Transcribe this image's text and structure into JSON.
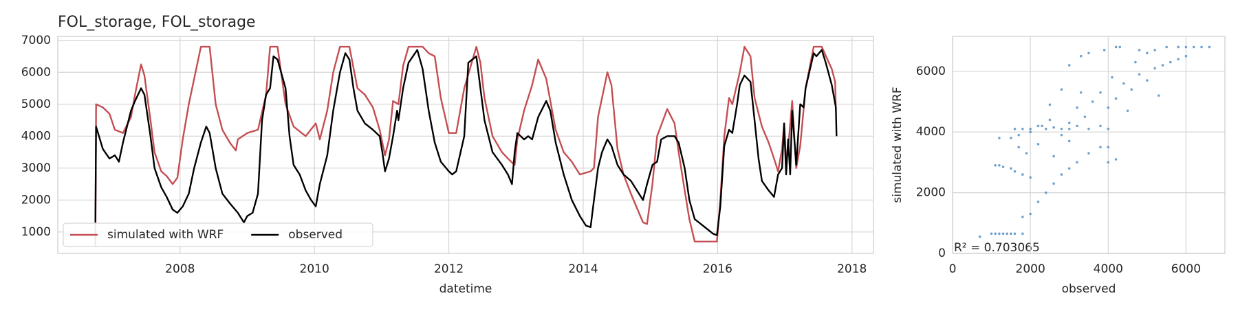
{
  "chart_data": [
    {
      "type": "line",
      "title": "FOL_storage, FOL_storage",
      "x_label": "datetime",
      "xlim": [
        2006.18,
        2018.32
      ],
      "xticks": [
        2008,
        2010,
        2012,
        2014,
        2016,
        2018
      ],
      "ylim": [
        330,
        7124
      ],
      "yticks": [
        1000,
        2000,
        3000,
        4000,
        5000,
        6000,
        7000
      ],
      "grid": true,
      "legend": "lower left",
      "series": [
        {
          "name": "simulated with WRF",
          "color": "#c44e52",
          "x": [
            2006.74,
            2006.75,
            2006.85,
            2006.95,
            2007.03,
            2007.09,
            2007.15,
            2007.27,
            2007.33,
            2007.42,
            2007.47,
            2007.56,
            2007.62,
            2007.72,
            2007.8,
            2007.89,
            2007.96,
            2008.04,
            2008.13,
            2008.21,
            2008.31,
            2008.44,
            2008.53,
            2008.63,
            2008.74,
            2008.83,
            2008.86,
            2009.0,
            2009.16,
            2009.28,
            2009.34,
            2009.45,
            2009.57,
            2009.69,
            2009.87,
            2010.02,
            2010.08,
            2010.19,
            2010.28,
            2010.38,
            2010.52,
            2010.64,
            2010.75,
            2010.87,
            2010.97,
            2011.05,
            2011.11,
            2011.17,
            2011.25,
            2011.32,
            2011.4,
            2011.61,
            2011.7,
            2011.79,
            2011.88,
            2012.0,
            2012.11,
            2012.23,
            2012.41,
            2012.47,
            2012.53,
            2012.65,
            2012.79,
            2012.88,
            2012.98,
            2013.02,
            2013.12,
            2013.24,
            2013.33,
            2013.45,
            2013.59,
            2013.71,
            2013.83,
            2013.95,
            2014.11,
            2014.16,
            2014.22,
            2014.36,
            2014.42,
            2014.51,
            2014.6,
            2014.71,
            2014.83,
            2014.89,
            2014.95,
            2015.03,
            2015.1,
            2015.25,
            2015.36,
            2015.42,
            2015.51,
            2015.58,
            2015.66,
            2015.99,
            2016.04,
            2016.1,
            2016.17,
            2016.22,
            2016.33,
            2016.4,
            2016.49,
            2016.55,
            2016.66,
            2016.76,
            2016.84,
            2016.9,
            2016.96,
            2016.99,
            2017.02,
            2017.05,
            2017.11,
            2017.17,
            2017.23,
            2017.31,
            2017.43,
            2017.55,
            2017.7,
            2017.75,
            2017.76
          ],
          "values": [
            550,
            5000,
            4900,
            4700,
            4200,
            4150,
            4100,
            4600,
            5300,
            6250,
            5900,
            4500,
            3500,
            2900,
            2750,
            2500,
            2700,
            3900,
            5000,
            5800,
            6800,
            6800,
            5000,
            4200,
            3800,
            3550,
            3900,
            4100,
            4200,
            5300,
            6800,
            6800,
            5000,
            4300,
            4000,
            4400,
            3900,
            4800,
            6000,
            6800,
            6800,
            5500,
            5300,
            4900,
            4200,
            3400,
            3900,
            5100,
            5000,
            6200,
            6800,
            6800,
            6600,
            6500,
            5200,
            4100,
            4100,
            5500,
            6800,
            6300,
            5200,
            4000,
            3500,
            3300,
            3100,
            3900,
            4800,
            5600,
            6400,
            5800,
            4200,
            3500,
            3200,
            2800,
            2900,
            3000,
            4600,
            6000,
            5600,
            3600,
            2800,
            2200,
            1600,
            1300,
            1250,
            2500,
            4000,
            4850,
            4400,
            3500,
            2300,
            1400,
            700,
            700,
            2000,
            4000,
            5200,
            5000,
            6000,
            6800,
            6500,
            5200,
            4300,
            3800,
            3300,
            2900,
            3600,
            4400,
            3200,
            3600,
            5100,
            3000,
            3700,
            5500,
            6800,
            6800,
            6100,
            5700,
            4800
          ]
        },
        {
          "name": "observed",
          "color": "#000000",
          "x": [
            2006.74,
            2006.75,
            2006.85,
            2006.95,
            2007.03,
            2007.09,
            2007.15,
            2007.27,
            2007.33,
            2007.42,
            2007.47,
            2007.56,
            2007.62,
            2007.72,
            2007.8,
            2007.89,
            2007.96,
            2008.04,
            2008.13,
            2008.21,
            2008.31,
            2008.39,
            2008.44,
            2008.53,
            2008.63,
            2008.74,
            2008.86,
            2008.95,
            2009.0,
            2009.08,
            2009.16,
            2009.22,
            2009.28,
            2009.34,
            2009.39,
            2009.45,
            2009.57,
            2009.63,
            2009.69,
            2009.78,
            2009.87,
            2009.95,
            2010.02,
            2010.08,
            2010.19,
            2010.28,
            2010.38,
            2010.46,
            2010.52,
            2010.58,
            2010.64,
            2010.75,
            2010.87,
            2010.97,
            2011.01,
            2011.05,
            2011.11,
            2011.17,
            2011.23,
            2011.25,
            2011.32,
            2011.4,
            2011.53,
            2011.61,
            2011.7,
            2011.79,
            2011.88,
            2012.0,
            2012.05,
            2012.11,
            2012.23,
            2012.29,
            2012.41,
            2012.47,
            2012.53,
            2012.65,
            2012.79,
            2012.88,
            2012.94,
            2012.98,
            2013.02,
            2013.12,
            2013.18,
            2013.24,
            2013.33,
            2013.45,
            2013.51,
            2013.59,
            2013.71,
            2013.83,
            2013.95,
            2014.04,
            2014.11,
            2014.16,
            2014.22,
            2014.28,
            2014.36,
            2014.42,
            2014.51,
            2014.6,
            2014.71,
            2014.83,
            2014.89,
            2014.95,
            2015.03,
            2015.1,
            2015.16,
            2015.25,
            2015.36,
            2015.42,
            2015.51,
            2015.58,
            2015.66,
            2015.78,
            2015.93,
            2015.99,
            2016.04,
            2016.1,
            2016.17,
            2016.22,
            2016.29,
            2016.33,
            2016.4,
            2016.49,
            2016.55,
            2016.61,
            2016.66,
            2016.76,
            2016.84,
            2016.9,
            2016.96,
            2016.99,
            2017.02,
            2017.05,
            2017.08,
            2017.11,
            2017.17,
            2017.23,
            2017.28,
            2017.31,
            2017.43,
            2017.47,
            2017.55,
            2017.61,
            2017.7,
            2017.76,
            2017.77
          ],
          "values": [
            1300,
            4300,
            3600,
            3300,
            3400,
            3200,
            3800,
            4800,
            5100,
            5500,
            5300,
            4000,
            3000,
            2400,
            2100,
            1700,
            1600,
            1800,
            2200,
            3000,
            3800,
            4300,
            4100,
            3000,
            2200,
            1900,
            1600,
            1300,
            1500,
            1600,
            2200,
            4500,
            5300,
            5500,
            6500,
            6400,
            5500,
            4000,
            3100,
            2800,
            2300,
            2000,
            1800,
            2500,
            3400,
            4800,
            6000,
            6600,
            6400,
            5500,
            4800,
            4400,
            4200,
            4000,
            3500,
            2900,
            3300,
            4000,
            4800,
            4500,
            5500,
            6300,
            6700,
            6100,
            4800,
            3800,
            3200,
            2900,
            2800,
            2900,
            4000,
            6300,
            6500,
            5500,
            4500,
            3500,
            3100,
            2800,
            2500,
            3500,
            4100,
            3900,
            4000,
            3900,
            4600,
            5100,
            4800,
            3800,
            2800,
            2000,
            1500,
            1200,
            1150,
            2000,
            3000,
            3500,
            3900,
            3700,
            3100,
            2800,
            2600,
            2200,
            2000,
            2500,
            3100,
            3200,
            3900,
            4000,
            4000,
            3800,
            3000,
            2000,
            1400,
            1200,
            950,
            900,
            1800,
            3700,
            4200,
            4100,
            5000,
            5600,
            5900,
            5700,
            4500,
            3300,
            2600,
            2300,
            2100,
            2800,
            3000,
            4400,
            2800,
            3900,
            2800,
            4800,
            3100,
            5000,
            4900,
            5500,
            6600,
            6500,
            6700,
            6300,
            5600,
            4900,
            4000
          ]
        }
      ]
    },
    {
      "type": "scatter",
      "x_label": "observed",
      "y_label": "simulated with WRF",
      "annotation": "R² = 0.703065",
      "xlim": [
        0,
        7000
      ],
      "xticks": [
        0,
        2000,
        4000,
        6000
      ],
      "ylim": [
        0,
        7150
      ],
      "yticks": [
        0,
        2000,
        4000,
        6000
      ],
      "grid": true,
      "color": "#4c8bc2",
      "x": [
        700,
        1000,
        1100,
        1200,
        1300,
        1400,
        1500,
        1600,
        1800,
        1100,
        1200,
        1300,
        1500,
        1600,
        1800,
        2000,
        1800,
        2000,
        2200,
        2400,
        2600,
        2800,
        3000,
        3200,
        3500,
        3800,
        4000,
        1500,
        1600,
        1800,
        2000,
        2200,
        2400,
        2600,
        2800,
        3000,
        3200,
        3500,
        3800,
        4000,
        1200,
        1700,
        2000,
        2300,
        2500,
        3000,
        3200,
        3400,
        3600,
        3800,
        4000,
        4200,
        4400,
        4600,
        4800,
        5000,
        5200,
        5400,
        5600,
        5800,
        6000,
        4200,
        4300,
        4800,
        5000,
        5500,
        5800,
        6000,
        6200,
        6400,
        6600,
        2500,
        2800,
        3000,
        3300,
        3500,
        3900,
        4100,
        3000,
        2800,
        2600,
        3300,
        4500,
        5300,
        4700,
        5200,
        2200,
        1900,
        1700,
        4000,
        4200
      ],
      "values": [
        550,
        650,
        650,
        650,
        650,
        650,
        650,
        650,
        650,
        2900,
        2900,
        2850,
        2800,
        2700,
        2600,
        2500,
        1200,
        1300,
        1700,
        2000,
        2300,
        2600,
        2800,
        3000,
        3300,
        3500,
        3500,
        3800,
        4100,
        4100,
        4100,
        4200,
        4100,
        4150,
        4100,
        4100,
        4200,
        4100,
        4200,
        4100,
        3800,
        3900,
        4000,
        4200,
        4400,
        3700,
        4800,
        4500,
        5000,
        5300,
        4800,
        5100,
        5600,
        5400,
        5900,
        5700,
        6100,
        6200,
        6300,
        6400,
        6500,
        6800,
        6800,
        6700,
        6600,
        6800,
        6800,
        6800,
        6800,
        6800,
        6800,
        4900,
        5400,
        6200,
        6500,
        6600,
        6700,
        5800,
        4300,
        3900,
        3200,
        5300,
        4700,
        5200,
        6300,
        6700,
        3600,
        3300,
        3500,
        3000,
        3100
      ]
    }
  ]
}
